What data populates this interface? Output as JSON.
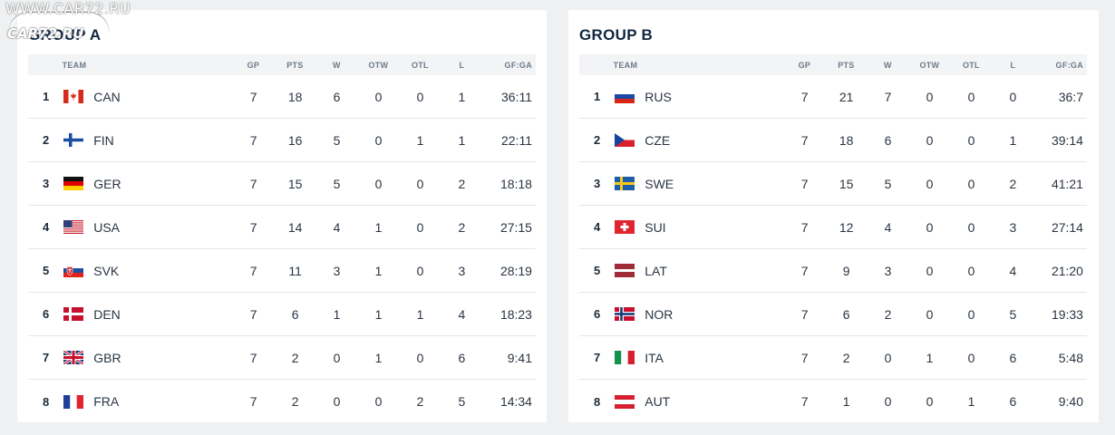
{
  "watermark": {
    "text": "WWW.CAR72.RU",
    "logo_text": "CAR72.RU"
  },
  "columns": [
    "TEAM",
    "GP",
    "PTS",
    "W",
    "OTW",
    "OTL",
    "L",
    "GF:GA"
  ],
  "group_a": {
    "title": "GROUP A",
    "rows": [
      {
        "rank": "1",
        "team": "CAN",
        "flag": "can",
        "gp": "7",
        "pts": "18",
        "w": "6",
        "otw": "0",
        "otl": "0",
        "l": "1",
        "gfga": "36:11"
      },
      {
        "rank": "2",
        "team": "FIN",
        "flag": "fin",
        "gp": "7",
        "pts": "16",
        "w": "5",
        "otw": "0",
        "otl": "1",
        "l": "1",
        "gfga": "22:11"
      },
      {
        "rank": "3",
        "team": "GER",
        "flag": "ger",
        "gp": "7",
        "pts": "15",
        "w": "5",
        "otw": "0",
        "otl": "0",
        "l": "2",
        "gfga": "18:18"
      },
      {
        "rank": "4",
        "team": "USA",
        "flag": "usa",
        "gp": "7",
        "pts": "14",
        "w": "4",
        "otw": "1",
        "otl": "0",
        "l": "2",
        "gfga": "27:15"
      },
      {
        "rank": "5",
        "team": "SVK",
        "flag": "svk",
        "gp": "7",
        "pts": "11",
        "w": "3",
        "otw": "1",
        "otl": "0",
        "l": "3",
        "gfga": "28:19"
      },
      {
        "rank": "6",
        "team": "DEN",
        "flag": "den",
        "gp": "7",
        "pts": "6",
        "w": "1",
        "otw": "1",
        "otl": "1",
        "l": "4",
        "gfga": "18:23"
      },
      {
        "rank": "7",
        "team": "GBR",
        "flag": "gbr",
        "gp": "7",
        "pts": "2",
        "w": "0",
        "otw": "1",
        "otl": "0",
        "l": "6",
        "gfga": "9:41"
      },
      {
        "rank": "8",
        "team": "FRA",
        "flag": "fra",
        "gp": "7",
        "pts": "2",
        "w": "0",
        "otw": "0",
        "otl": "2",
        "l": "5",
        "gfga": "14:34"
      }
    ]
  },
  "group_b": {
    "title": "GROUP B",
    "rows": [
      {
        "rank": "1",
        "team": "RUS",
        "flag": "rus",
        "gp": "7",
        "pts": "21",
        "w": "7",
        "otw": "0",
        "otl": "0",
        "l": "0",
        "gfga": "36:7"
      },
      {
        "rank": "2",
        "team": "CZE",
        "flag": "cze",
        "gp": "7",
        "pts": "18",
        "w": "6",
        "otw": "0",
        "otl": "0",
        "l": "1",
        "gfga": "39:14"
      },
      {
        "rank": "3",
        "team": "SWE",
        "flag": "swe",
        "gp": "7",
        "pts": "15",
        "w": "5",
        "otw": "0",
        "otl": "0",
        "l": "2",
        "gfga": "41:21"
      },
      {
        "rank": "4",
        "team": "SUI",
        "flag": "sui",
        "gp": "7",
        "pts": "12",
        "w": "4",
        "otw": "0",
        "otl": "0",
        "l": "3",
        "gfga": "27:14"
      },
      {
        "rank": "5",
        "team": "LAT",
        "flag": "lat",
        "gp": "7",
        "pts": "9",
        "w": "3",
        "otw": "0",
        "otl": "0",
        "l": "4",
        "gfga": "21:20"
      },
      {
        "rank": "6",
        "team": "NOR",
        "flag": "nor",
        "gp": "7",
        "pts": "6",
        "w": "2",
        "otw": "0",
        "otl": "0",
        "l": "5",
        "gfga": "19:33"
      },
      {
        "rank": "7",
        "team": "ITA",
        "flag": "ita",
        "gp": "7",
        "pts": "2",
        "w": "0",
        "otw": "1",
        "otl": "0",
        "l": "6",
        "gfga": "5:48"
      },
      {
        "rank": "8",
        "team": "AUT",
        "flag": "aut",
        "gp": "7",
        "pts": "1",
        "w": "0",
        "otw": "0",
        "otl": "1",
        "l": "6",
        "gfga": "9:40"
      }
    ]
  }
}
